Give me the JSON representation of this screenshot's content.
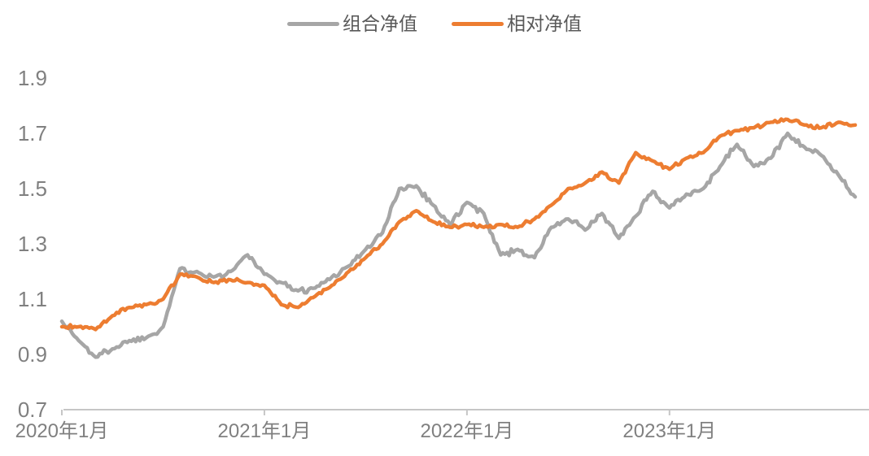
{
  "legend": [
    {
      "label": "组合净值",
      "color": "#A6A6A6"
    },
    {
      "label": "相对净值",
      "color": "#ED7D31"
    }
  ],
  "colors": {
    "axis_line": "#C6C6C6",
    "tick_label": "#808080",
    "legend_text": "#595959",
    "background": "#FFFFFF"
  },
  "chart_data": {
    "type": "line",
    "title": "",
    "xlabel": "",
    "ylabel": "",
    "grid": false,
    "legend_position": "top",
    "ylim": [
      0.7,
      1.9
    ],
    "yticks": [
      0.7,
      0.9,
      1.1,
      1.3,
      1.5,
      1.7,
      1.9
    ],
    "xtick_labels": [
      "2020年1月",
      "2021年1月",
      "2022年1月",
      "2023年1月"
    ],
    "xtick_month_indices": [
      0,
      12,
      24,
      36
    ],
    "categories": [
      "2020-01",
      "2020-02",
      "2020-03",
      "2020-04",
      "2020-05",
      "2020-06",
      "2020-07",
      "2020-08",
      "2020-09",
      "2020-10",
      "2020-11",
      "2020-12",
      "2021-01",
      "2021-02",
      "2021-03",
      "2021-04",
      "2021-05",
      "2021-06",
      "2021-07",
      "2021-08",
      "2021-09",
      "2021-10",
      "2021-11",
      "2021-12",
      "2022-01",
      "2022-02",
      "2022-03",
      "2022-04",
      "2022-05",
      "2022-06",
      "2022-07",
      "2022-08",
      "2022-09",
      "2022-10",
      "2022-11",
      "2022-12",
      "2023-01",
      "2023-02",
      "2023-03",
      "2023-04",
      "2023-05",
      "2023-06",
      "2023-07",
      "2023-08",
      "2023-09",
      "2023-10",
      "2023-11",
      "2023-12"
    ],
    "series": [
      {
        "name": "组合净值",
        "color": "#A6A6A6",
        "values": [
          1.02,
          0.95,
          0.89,
          0.92,
          0.95,
          0.96,
          1.0,
          1.21,
          1.2,
          1.18,
          1.2,
          1.26,
          1.19,
          1.16,
          1.13,
          1.14,
          1.18,
          1.22,
          1.28,
          1.34,
          1.5,
          1.51,
          1.44,
          1.37,
          1.45,
          1.41,
          1.26,
          1.28,
          1.25,
          1.36,
          1.39,
          1.35,
          1.41,
          1.32,
          1.4,
          1.49,
          1.43,
          1.48,
          1.5,
          1.58,
          1.66,
          1.58,
          1.61,
          1.7,
          1.65,
          1.62,
          1.55,
          1.47
        ]
      },
      {
        "name": "相对净值",
        "color": "#ED7D31",
        "values": [
          1.0,
          1.0,
          0.99,
          1.04,
          1.07,
          1.08,
          1.1,
          1.19,
          1.18,
          1.16,
          1.17,
          1.16,
          1.15,
          1.08,
          1.07,
          1.11,
          1.15,
          1.2,
          1.25,
          1.3,
          1.38,
          1.42,
          1.38,
          1.36,
          1.37,
          1.36,
          1.37,
          1.36,
          1.39,
          1.44,
          1.5,
          1.52,
          1.56,
          1.52,
          1.63,
          1.6,
          1.57,
          1.61,
          1.63,
          1.69,
          1.71,
          1.72,
          1.74,
          1.75,
          1.73,
          1.72,
          1.74,
          1.73
        ]
      }
    ]
  }
}
